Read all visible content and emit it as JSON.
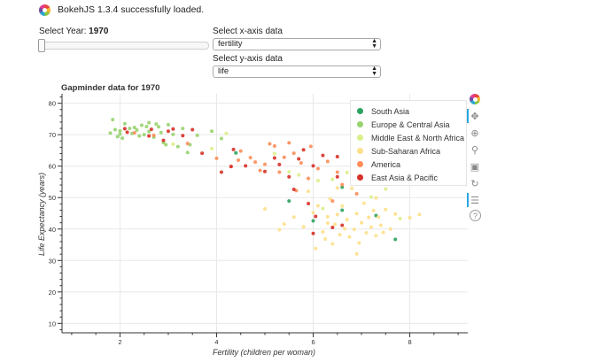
{
  "banner": {
    "text": "BokehJS 1.3.4 successfully loaded."
  },
  "controls": {
    "slider": {
      "label_prefix": "Select Year: ",
      "value": "1970"
    },
    "x_select": {
      "label": "Select x-axis data",
      "value": "fertility"
    },
    "y_select": {
      "label": "Select y-axis data",
      "value": "life"
    }
  },
  "colors": {
    "South Asia": "#2ca25f",
    "Europe & Central Asia": "#98d36e",
    "Middle East & North Africa": "#d9ef8b",
    "Sub-Saharan Africa": "#fee08b",
    "America": "#fc8d59",
    "East Asia & Pacific": "#d73027"
  },
  "toolbar": {
    "tools": [
      {
        "name": "bokeh-logo-icon"
      },
      {
        "name": "pan-icon",
        "active": true
      },
      {
        "name": "box-zoom-icon"
      },
      {
        "name": "wheel-zoom-icon"
      },
      {
        "name": "save-icon"
      },
      {
        "name": "reset-icon"
      },
      {
        "name": "hover-icon",
        "active": true
      },
      {
        "name": "help-icon"
      }
    ]
  },
  "chart_data": {
    "type": "scatter",
    "title": "Gapminder data for 1970",
    "xlabel": "Fertility (children per woman)",
    "ylabel": "Life Expectancy (years)",
    "xlim": [
      0.8,
      9.2
    ],
    "ylim": [
      7,
      83
    ],
    "x_ticks": [
      2,
      4,
      6,
      8
    ],
    "y_ticks": [
      10,
      20,
      30,
      40,
      50,
      60,
      70,
      80
    ],
    "grid": true,
    "legend_position": "top-right",
    "series": [
      {
        "name": "South Asia",
        "points": [
          [
            4.4,
            64.2
          ],
          [
            5.5,
            48.9
          ],
          [
            6.0,
            42.6
          ],
          [
            6.6,
            53.3
          ],
          [
            7.3,
            44.3
          ],
          [
            7.7,
            36.7
          ],
          [
            6.6,
            46.0
          ]
        ]
      },
      {
        "name": "Europe & Central Asia",
        "points": [
          [
            1.8,
            70.5
          ],
          [
            1.85,
            74.8
          ],
          [
            1.9,
            71.6
          ],
          [
            1.95,
            69.4
          ],
          [
            2.0,
            70.2
          ],
          [
            2.0,
            71.2
          ],
          [
            2.05,
            68.9
          ],
          [
            2.1,
            73.5
          ],
          [
            2.2,
            72.0
          ],
          [
            2.25,
            70.4
          ],
          [
            2.3,
            72.3
          ],
          [
            2.35,
            71.5
          ],
          [
            2.4,
            69.6
          ],
          [
            2.45,
            73.0
          ],
          [
            2.5,
            70.0
          ],
          [
            2.55,
            72.6
          ],
          [
            2.6,
            71.0
          ],
          [
            2.7,
            69.2
          ],
          [
            2.75,
            73.4
          ],
          [
            2.8,
            72.5
          ],
          [
            2.85,
            70.7
          ],
          [
            2.9,
            67.5
          ],
          [
            3.0,
            73.2
          ],
          [
            3.1,
            70.1
          ],
          [
            3.2,
            66.2
          ],
          [
            3.3,
            72.0
          ],
          [
            3.4,
            64.3
          ],
          [
            3.6,
            69.8
          ],
          [
            3.9,
            71.1
          ],
          [
            4.1,
            68.8
          ],
          [
            3.45,
            66.8
          ],
          [
            2.95,
            66.8
          ],
          [
            2.6,
            73.8
          ]
        ]
      },
      {
        "name": "Middle East & North Africa",
        "points": [
          [
            3.1,
            67.0
          ],
          [
            3.9,
            65.6
          ],
          [
            4.2,
            70.4
          ],
          [
            5.2,
            64.0
          ],
          [
            5.7,
            57.2
          ],
          [
            6.1,
            55.4
          ],
          [
            6.4,
            55.8
          ],
          [
            6.7,
            58.0
          ],
          [
            6.9,
            57.6
          ],
          [
            7.2,
            50.2
          ],
          [
            7.5,
            52.7
          ],
          [
            7.8,
            43.3
          ],
          [
            6.2,
            46.5
          ],
          [
            5.5,
            58.2
          ],
          [
            7.0,
            55.8
          ]
        ]
      },
      {
        "name": "Sub-Saharan Africa",
        "points": [
          [
            5.0,
            46.4
          ],
          [
            5.4,
            41.6
          ],
          [
            5.6,
            43.8
          ],
          [
            5.8,
            40.7
          ],
          [
            5.9,
            52.0
          ],
          [
            6.0,
            45.2
          ],
          [
            6.1,
            47.4
          ],
          [
            6.2,
            39.1
          ],
          [
            6.25,
            36.8
          ],
          [
            6.3,
            43.9
          ],
          [
            6.35,
            49.6
          ],
          [
            6.4,
            35.3
          ],
          [
            6.45,
            41.5
          ],
          [
            6.5,
            44.6
          ],
          [
            6.55,
            38.2
          ],
          [
            6.6,
            47.3
          ],
          [
            6.65,
            40.1
          ],
          [
            6.7,
            43.0
          ],
          [
            6.75,
            37.5
          ],
          [
            6.8,
            52.9
          ],
          [
            6.85,
            39.9
          ],
          [
            6.9,
            44.9
          ],
          [
            6.95,
            35.6
          ],
          [
            7.0,
            42.0
          ],
          [
            7.05,
            48.2
          ],
          [
            7.1,
            38.8
          ],
          [
            7.15,
            43.7
          ],
          [
            7.2,
            40.6
          ],
          [
            7.25,
            45.9
          ],
          [
            7.3,
            37.9
          ],
          [
            7.35,
            43.8
          ],
          [
            7.4,
            41.2
          ],
          [
            7.45,
            38.9
          ],
          [
            7.5,
            46.2
          ],
          [
            7.6,
            40.0
          ],
          [
            7.7,
            44.8
          ],
          [
            8.0,
            43.6
          ],
          [
            8.2,
            44.6
          ],
          [
            6.9,
            32.1
          ],
          [
            6.3,
            41.9
          ],
          [
            5.3,
            39.8
          ],
          [
            6.5,
            53.1
          ],
          [
            7.3,
            49.9
          ],
          [
            6.05,
            33.8
          ]
        ]
      },
      {
        "name": "America",
        "points": [
          [
            2.3,
            70.6
          ],
          [
            2.7,
            69.8
          ],
          [
            3.4,
            67.2
          ],
          [
            4.0,
            62.5
          ],
          [
            4.3,
            59.9
          ],
          [
            4.5,
            64.8
          ],
          [
            4.7,
            62.7
          ],
          [
            4.8,
            61.3
          ],
          [
            5.0,
            60.6
          ],
          [
            5.1,
            67.1
          ],
          [
            5.3,
            58.1
          ],
          [
            5.4,
            62.8
          ],
          [
            5.5,
            67.4
          ],
          [
            5.6,
            64.1
          ],
          [
            5.75,
            61.0
          ],
          [
            5.9,
            56.1
          ],
          [
            6.1,
            59.2
          ],
          [
            6.3,
            61.5
          ],
          [
            6.4,
            48.9
          ],
          [
            6.6,
            54.1
          ],
          [
            6.9,
            51.2
          ],
          [
            5.65,
            52.2
          ],
          [
            4.9,
            58.6
          ],
          [
            5.2,
            66.4
          ],
          [
            6.5,
            58.1
          ],
          [
            6.95,
            55.2
          ],
          [
            7.0,
            61.4
          ],
          [
            4.45,
            61.9
          ],
          [
            5.95,
            66.3
          ]
        ]
      },
      {
        "name": "East Asia & Pacific",
        "points": [
          [
            2.1,
            71.9
          ],
          [
            2.15,
            70.8
          ],
          [
            2.6,
            69.6
          ],
          [
            2.65,
            71.7
          ],
          [
            2.9,
            68.2
          ],
          [
            3.0,
            71.1
          ],
          [
            3.3,
            69.7
          ],
          [
            3.5,
            71.6
          ],
          [
            3.7,
            64.1
          ],
          [
            4.3,
            59.9
          ],
          [
            4.35,
            65.3
          ],
          [
            4.6,
            60.1
          ],
          [
            5.0,
            58.3
          ],
          [
            5.2,
            62.6
          ],
          [
            5.3,
            60.5
          ],
          [
            5.6,
            52.6
          ],
          [
            5.7,
            62.3
          ],
          [
            5.8,
            65.2
          ],
          [
            5.9,
            48.1
          ],
          [
            6.0,
            38.6
          ],
          [
            6.05,
            44.0
          ],
          [
            6.2,
            63.4
          ],
          [
            6.4,
            40.5
          ],
          [
            6.5,
            63.0
          ],
          [
            6.6,
            41.2
          ],
          [
            6.8,
            59.9
          ],
          [
            6.5,
            56.6
          ],
          [
            6.0,
            60.1
          ],
          [
            5.5,
            56.6
          ],
          [
            4.1,
            58.1
          ],
          [
            3.1,
            71.8
          ]
        ]
      }
    ]
  }
}
